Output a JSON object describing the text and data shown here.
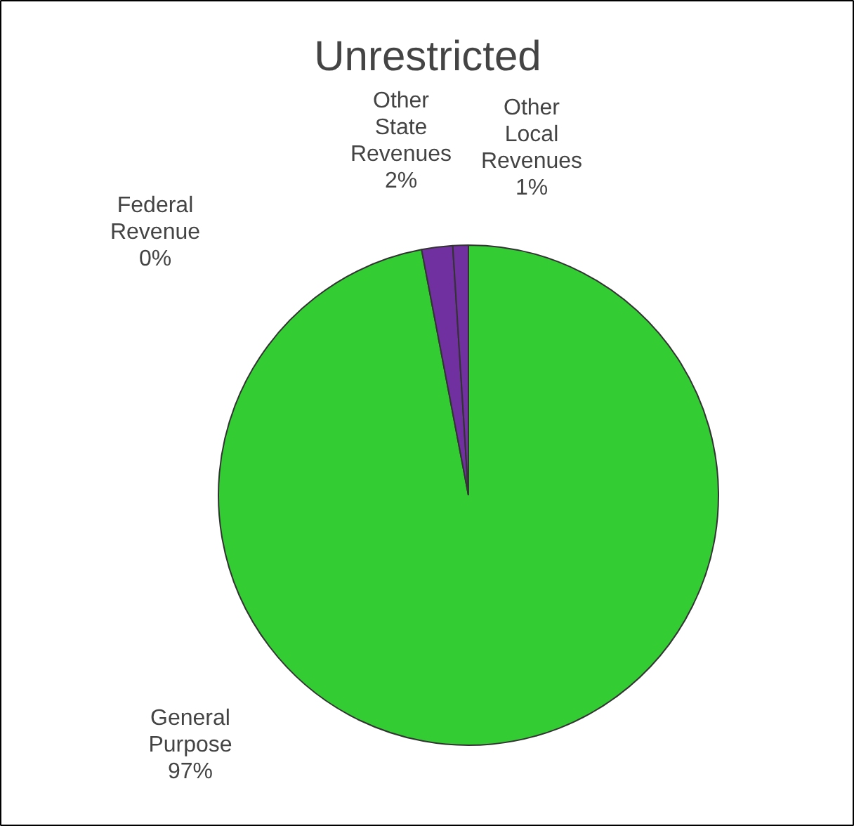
{
  "chart_data": {
    "type": "pie",
    "title": "Unrestricted",
    "categories": [
      "General Purpose",
      "Federal Revenue",
      "Other State Revenues",
      "Other Local Revenues"
    ],
    "values": [
      97,
      0,
      2,
      1
    ],
    "colors": [
      "#33cc33",
      "#b8a000",
      "#7030a0",
      "#7030a0"
    ],
    "value_labels": [
      "97%",
      "0%",
      "2%",
      "1%"
    ]
  }
}
